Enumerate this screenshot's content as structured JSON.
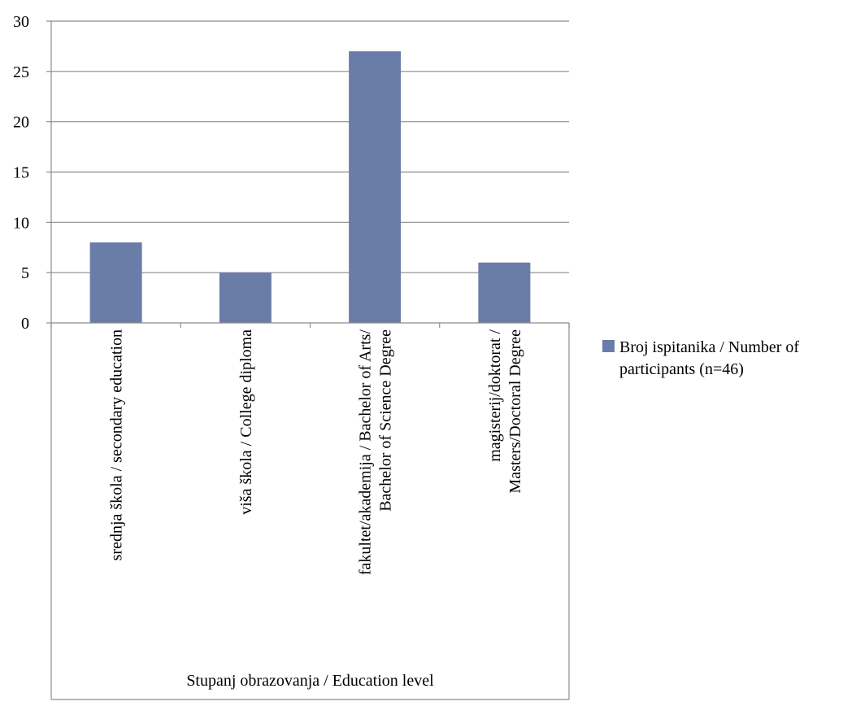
{
  "chart_data": {
    "type": "bar",
    "categories": [
      [
        "srednja škola / secondary education"
      ],
      [
        "viša škola / College diploma"
      ],
      [
        "fakultet/akademija / Bachelor of Arts/",
        "Bachelor of Science Degree"
      ],
      [
        "magisterij/doktorat /",
        "Masters/Doctoral Degree"
      ]
    ],
    "series": [
      {
        "name": [
          "Broj ispitanika / Number of",
          "participants (n=46)"
        ],
        "values": [
          8,
          5,
          27,
          6
        ],
        "color": "#6a7ca8"
      }
    ],
    "xlabel": "Stupanj obrazovanja / Education level",
    "ylim": [
      0,
      30
    ],
    "yticks": [
      0,
      5,
      10,
      15,
      20,
      25,
      30
    ],
    "grid": true,
    "legend": "right"
  }
}
